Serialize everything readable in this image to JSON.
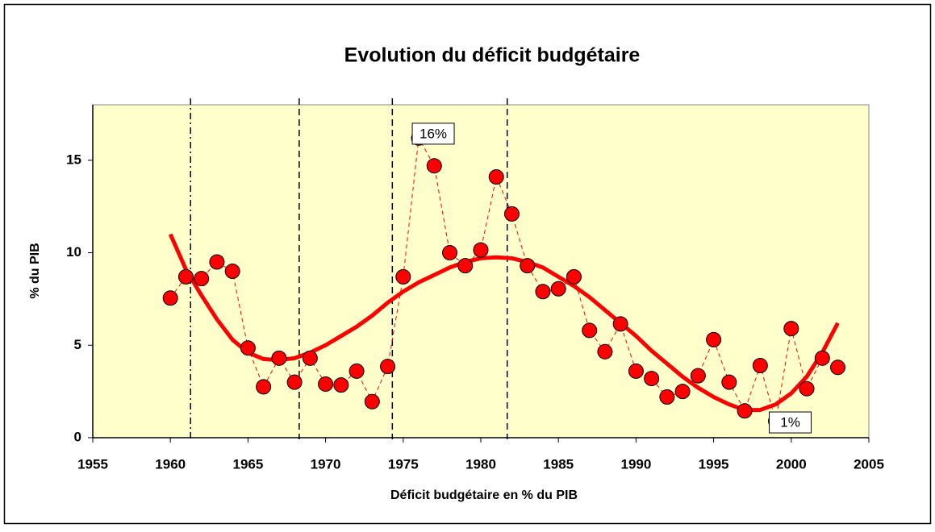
{
  "chart_data": {
    "type": "line",
    "title": "Evolution du déficit budgétaire",
    "x_label": "Déficit budgétaire en % du PIB",
    "y_label": "% du PIB",
    "xlim": [
      1955,
      2005
    ],
    "xticks": [
      1955,
      1960,
      1965,
      1970,
      1975,
      1980,
      1985,
      1990,
      1995,
      2000,
      2005
    ],
    "ylim": [
      0,
      18
    ],
    "yticks": [
      0,
      5,
      10,
      15
    ],
    "grid": false,
    "background": "#ffffcc",
    "x": [
      1960,
      1961,
      1962,
      1963,
      1964,
      1965,
      1966,
      1967,
      1968,
      1969,
      1970,
      1971,
      1972,
      1973,
      1974,
      1975,
      1976,
      1977,
      1978,
      1979,
      1980,
      1981,
      1982,
      1983,
      1984,
      1985,
      1986,
      1987,
      1988,
      1989,
      1990,
      1991,
      1992,
      1993,
      1994,
      1995,
      1996,
      1997,
      1998,
      1999,
      2000,
      2001,
      2002,
      2003
    ],
    "series": [
      {
        "color": "#ff0000",
        "marker": true,
        "dashed": true,
        "values": [
          7.55,
          8.7,
          8.6,
          9.5,
          9.0,
          4.85,
          2.75,
          4.3,
          3.0,
          4.3,
          2.9,
          2.85,
          3.6,
          1.95,
          3.85,
          8.7,
          16.2,
          14.7,
          10.0,
          9.3,
          10.15,
          14.1,
          12.1,
          9.3,
          7.9,
          8.05,
          8.7,
          5.8,
          4.65,
          6.15,
          3.6,
          3.2,
          2.2,
          2.5,
          3.35,
          5.3,
          3.0,
          1.45,
          3.9,
          0.9,
          5.9,
          2.65,
          4.3,
          3.8
        ]
      },
      {
        "color": "#ff0000",
        "marker": false,
        "dashed": false,
        "values": [
          11.0,
          9.1,
          7.7,
          6.4,
          5.3,
          4.6,
          4.25,
          4.2,
          4.3,
          4.6,
          5.0,
          5.5,
          6.0,
          6.6,
          7.3,
          7.9,
          8.4,
          8.8,
          9.2,
          9.5,
          9.7,
          9.75,
          9.7,
          9.5,
          9.2,
          8.7,
          8.2,
          7.6,
          6.9,
          6.2,
          5.5,
          4.7,
          4.0,
          3.3,
          2.7,
          2.2,
          1.8,
          1.5,
          1.5,
          1.8,
          2.4,
          3.3,
          4.6,
          6.2
        ]
      }
    ],
    "vlines": [
      {
        "x": 1961.3,
        "style": "dashdot"
      },
      {
        "x": 1968.3,
        "style": "dash"
      },
      {
        "x": 1974.3,
        "style": "dash"
      },
      {
        "x": 1981.7,
        "style": "dash"
      }
    ],
    "annotations": [
      {
        "label": "16%",
        "x": 1976,
        "y": 16
      },
      {
        "label": "1%",
        "x": 1999,
        "y": 1
      }
    ]
  }
}
